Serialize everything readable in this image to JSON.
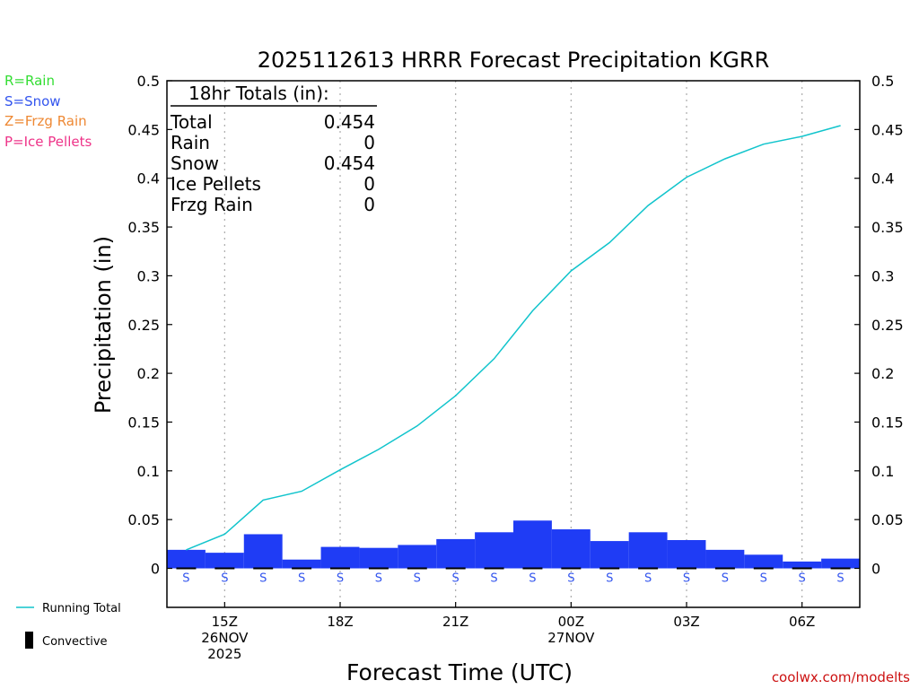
{
  "legend_keys": [
    {
      "text": "R=Rain",
      "color": "#33dd33"
    },
    {
      "text": "S=Snow",
      "color": "#3355ee"
    },
    {
      "text": "Z=Frzg Rain",
      "color": "#ee8833"
    },
    {
      "text": "P=Ice Pellets",
      "color": "#ee3388"
    }
  ],
  "footer": {
    "running_total_label": "Running Total",
    "convective_label": "Convective",
    "credit": "coolwx.com/modelts",
    "credit_color": "#cc1111"
  },
  "chart_data": {
    "type": "bar",
    "title": "2025112613 HRRR Forecast Precipitation KGRR",
    "xlabel": "Forecast Time (UTC)",
    "ylabel": "Precipitation (in)",
    "ylim": [
      -0.04,
      0.5
    ],
    "yticks": [
      0,
      0.05,
      0.1,
      0.15,
      0.2,
      0.25,
      0.3,
      0.35,
      0.4,
      0.45,
      0.5
    ],
    "ytick_labels": [
      "0",
      "0.05",
      "0.1",
      "0.15",
      "0.2",
      "0.25",
      "0.3",
      "0.35",
      "0.4",
      "0.45",
      "0.5"
    ],
    "x_range_hours": [
      13.5,
      31.5
    ],
    "grid": "vertical dotted at labeled hours",
    "x_ticks": [
      {
        "hour": 15,
        "lines": [
          "15Z",
          "26NOV",
          "2025"
        ]
      },
      {
        "hour": 18,
        "lines": [
          "18Z"
        ]
      },
      {
        "hour": 21,
        "lines": [
          "21Z"
        ]
      },
      {
        "hour": 24,
        "lines": [
          "00Z",
          "27NOV"
        ]
      },
      {
        "hour": 27,
        "lines": [
          "03Z"
        ]
      },
      {
        "hour": 30,
        "lines": [
          "06Z"
        ]
      }
    ],
    "hours": [
      14,
      15,
      16,
      17,
      18,
      19,
      20,
      21,
      22,
      23,
      24,
      25,
      26,
      27,
      28,
      29,
      30,
      31
    ],
    "precip_type": [
      "S",
      "S",
      "S",
      "S",
      "S",
      "S",
      "S",
      "S",
      "S",
      "S",
      "S",
      "S",
      "S",
      "S",
      "S",
      "S",
      "S",
      "S"
    ],
    "series": [
      {
        "name": "Hourly Snow",
        "color": "#1f3cf5",
        "values": [
          0.019,
          0.016,
          0.035,
          0.009,
          0.022,
          0.021,
          0.024,
          0.03,
          0.037,
          0.049,
          0.04,
          0.028,
          0.037,
          0.029,
          0.019,
          0.014,
          0.007,
          0.01
        ]
      },
      {
        "name": "Convective",
        "color": "#000000",
        "values": [
          0,
          0,
          0,
          0,
          0,
          0,
          0,
          0,
          0,
          0,
          0,
          0,
          0,
          0,
          0,
          0,
          0,
          0
        ]
      },
      {
        "name": "Running Total",
        "color": "#11c4cc",
        "values": [
          0.019,
          0.035,
          0.07,
          0.079,
          0.101,
          0.122,
          0.146,
          0.177,
          0.215,
          0.264,
          0.305,
          0.334,
          0.372,
          0.401,
          0.42,
          0.435,
          0.443,
          0.454
        ]
      }
    ],
    "totals_box": {
      "heading": "18hr Totals (in):",
      "rows": [
        {
          "label": "Total",
          "value": "0.454"
        },
        {
          "label": "Rain",
          "value": "0"
        },
        {
          "label": "Snow",
          "value": "0.454"
        },
        {
          "label": "Ice Pellets",
          "value": "0"
        },
        {
          "label": "Frzg Rain",
          "value": "0"
        }
      ]
    }
  }
}
